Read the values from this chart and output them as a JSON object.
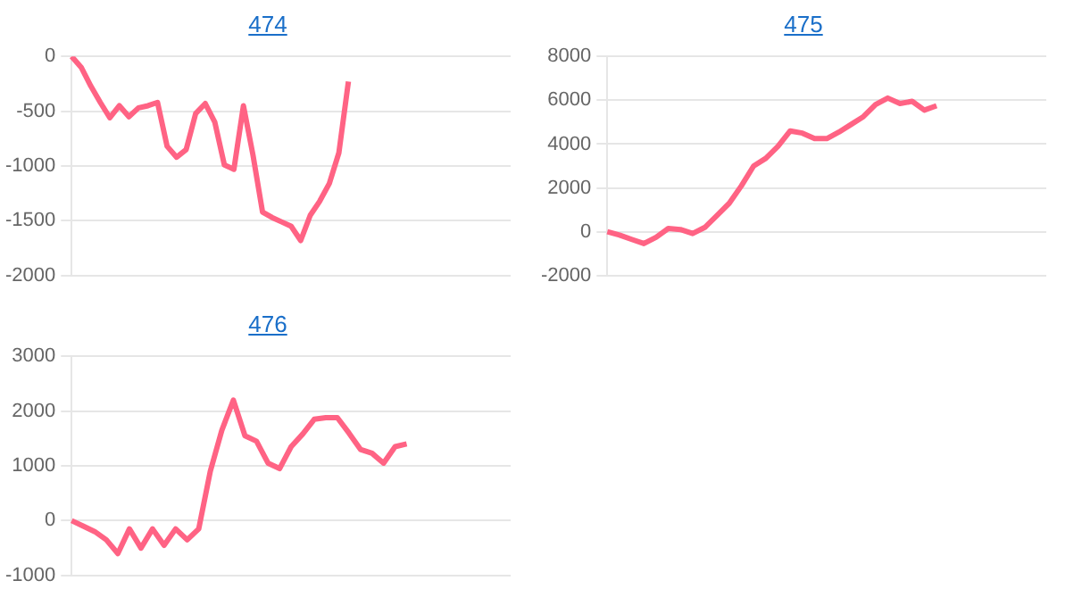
{
  "chart_data": [
    {
      "type": "line",
      "title": "474",
      "categories": [
        null,
        null,
        null,
        null,
        null,
        null,
        null,
        null,
        null,
        null,
        null,
        null,
        null,
        null,
        null,
        null,
        null,
        null,
        null,
        null,
        null,
        null,
        null,
        null,
        null,
        null,
        null,
        null,
        null,
        null,
        null,
        null,
        null,
        null,
        null,
        null,
        null,
        null,
        null,
        null,
        null,
        null,
        null,
        null,
        null,
        null,
        null
      ],
      "values": [
        0,
        -100,
        -270,
        -420,
        -560,
        -450,
        -550,
        -470,
        -450,
        -420,
        -820,
        -920,
        -850,
        -520,
        -430,
        -600,
        -990,
        -1030,
        -450,
        -900,
        -1420,
        -1470,
        -1510,
        -1550,
        -1680,
        -1450,
        -1320,
        -1160,
        -880,
        -230,
        null,
        null,
        null,
        null,
        null,
        null,
        null,
        null,
        null,
        null,
        null,
        null,
        null,
        null,
        null,
        null,
        null
      ],
      "color": "#ff6384",
      "ylim": [
        -2000,
        0
      ],
      "yticks": [
        -2000,
        -1500,
        -1000,
        -500,
        0
      ],
      "grid": "y",
      "tick_labels": "y"
    },
    {
      "type": "line",
      "title": "475",
      "categories": [
        null,
        null,
        null,
        null,
        null,
        null,
        null,
        null,
        null,
        null,
        null,
        null,
        null,
        null,
        null,
        null,
        null,
        null,
        null,
        null,
        null,
        null,
        null,
        null,
        null,
        null,
        null,
        null,
        null,
        null,
        null,
        null,
        null,
        null,
        null,
        null,
        null
      ],
      "values": [
        0,
        -150,
        -350,
        -540,
        -250,
        150,
        100,
        -80,
        200,
        750,
        1300,
        2100,
        3000,
        3350,
        3900,
        4600,
        4500,
        4250,
        4250,
        4550,
        4900,
        5250,
        5800,
        6100,
        5850,
        5950,
        5550,
        5750,
        null,
        null,
        null,
        null,
        null,
        null,
        null,
        null,
        null
      ],
      "color": "#ff6384",
      "ylim": [
        -2000,
        8000
      ],
      "yticks": [
        -2000,
        0,
        2000,
        4000,
        6000,
        8000
      ],
      "grid": "y",
      "tick_labels": "y"
    },
    {
      "type": "line",
      "title": "476",
      "categories": [
        null,
        null,
        null,
        null,
        null,
        null,
        null,
        null,
        null,
        null,
        null,
        null,
        null,
        null,
        null,
        null,
        null,
        null,
        null,
        null,
        null,
        null,
        null,
        null,
        null,
        null,
        null,
        null,
        null,
        null,
        null,
        null,
        null,
        null,
        null,
        null,
        null,
        null,
        null
      ],
      "values": [
        0,
        -100,
        -200,
        -350,
        -600,
        -150,
        -500,
        -150,
        -450,
        -150,
        -350,
        -150,
        900,
        1650,
        2200,
        1550,
        1450,
        1050,
        950,
        1350,
        1580,
        1850,
        1880,
        1880,
        1600,
        1300,
        1230,
        1050,
        1350,
        1400,
        null,
        null,
        null,
        null,
        null,
        null,
        null,
        null,
        null
      ],
      "color": "#ff6384",
      "ylim": [
        -1000,
        3000
      ],
      "yticks": [
        -1000,
        0,
        1000,
        2000,
        3000
      ],
      "grid": "y",
      "tick_labels": "y"
    }
  ]
}
